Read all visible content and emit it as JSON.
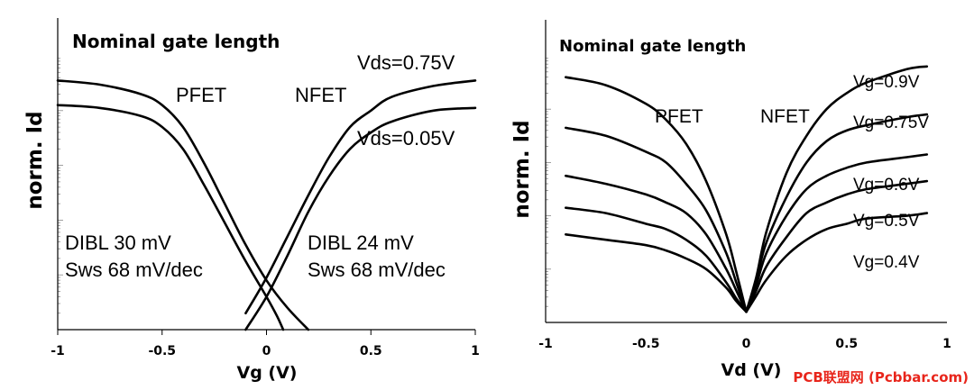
{
  "chart_data": [
    {
      "type": "line",
      "title": "Nominal gate length",
      "xlabel": "Vg (V)",
      "ylabel": "norm. Id",
      "xlim": [
        -1,
        1
      ],
      "ylim": [
        0,
        1
      ],
      "xticks": [
        "-1",
        "-0.5",
        "0",
        "0.5",
        "1"
      ],
      "y_scale": "log (unlabeled)",
      "device_labels": [
        "PFET",
        "NFET"
      ],
      "series": [
        {
          "name": "PFET Vds=0.75V",
          "x": [
            -1.0,
            -0.8,
            -0.6,
            -0.5,
            -0.4,
            -0.3,
            -0.2,
            -0.1,
            0.0,
            0.1,
            0.2
          ],
          "y": [
            0.91,
            0.895,
            0.86,
            0.82,
            0.74,
            0.61,
            0.46,
            0.31,
            0.18,
            0.08,
            0.0
          ]
        },
        {
          "name": "PFET Vds=0.05V",
          "x": [
            -1.0,
            -0.8,
            -0.6,
            -0.5,
            -0.4,
            -0.3,
            -0.2,
            -0.1,
            0.0,
            0.05,
            0.08
          ],
          "y": [
            0.82,
            0.81,
            0.78,
            0.74,
            0.66,
            0.53,
            0.39,
            0.25,
            0.12,
            0.05,
            0.0
          ]
        },
        {
          "name": "NFET Vds=0.75V",
          "x": [
            -0.1,
            0.0,
            0.1,
            0.2,
            0.3,
            0.4,
            0.5,
            0.6,
            0.8,
            1.0
          ],
          "y": [
            0.06,
            0.19,
            0.34,
            0.49,
            0.63,
            0.74,
            0.8,
            0.85,
            0.89,
            0.91
          ]
        },
        {
          "name": "NFET Vds=0.05V",
          "x": [
            -0.1,
            0.0,
            0.1,
            0.2,
            0.3,
            0.4,
            0.5,
            0.6,
            0.8,
            1.0
          ],
          "y": [
            0.0,
            0.12,
            0.27,
            0.43,
            0.56,
            0.66,
            0.72,
            0.76,
            0.8,
            0.81
          ]
        }
      ],
      "annotations": {
        "vds_high": "Vds=0.75V",
        "vds_low": "Vds=0.05V",
        "pfet_dibl": "DIBL 30 mV",
        "pfet_sws": "Sws 68 mV/dec",
        "nfet_dibl": "DIBL 24 mV",
        "nfet_sws": "Sws 68 mV/dec"
      }
    },
    {
      "type": "line",
      "title": "Nominal gate length",
      "xlabel": "Vd (V)",
      "ylabel": "norm. Id",
      "xlim": [
        -1,
        1
      ],
      "ylim": [
        0,
        1
      ],
      "xticks": [
        "-1",
        "-0.5",
        "0",
        "0.5",
        "1"
      ],
      "device_labels": [
        "PFET",
        "NFET"
      ],
      "series": [
        {
          "name": "PFET |Vg|=0.9V",
          "x": [
            -0.9,
            -0.7,
            -0.5,
            -0.4,
            -0.3,
            -0.2,
            -0.1,
            -0.05,
            0.0
          ],
          "y": [
            0.92,
            0.89,
            0.82,
            0.76,
            0.67,
            0.53,
            0.33,
            0.19,
            0.04
          ]
        },
        {
          "name": "PFET |Vg|=0.75V",
          "x": [
            -0.9,
            -0.7,
            -0.5,
            -0.4,
            -0.3,
            -0.2,
            -0.1,
            -0.05,
            0.0
          ],
          "y": [
            0.73,
            0.7,
            0.64,
            0.6,
            0.52,
            0.42,
            0.26,
            0.15,
            0.04
          ]
        },
        {
          "name": "PFET |Vg|=0.6V",
          "x": [
            -0.9,
            -0.7,
            -0.5,
            -0.4,
            -0.3,
            -0.2,
            -0.1,
            -0.05,
            0.0
          ],
          "y": [
            0.55,
            0.52,
            0.48,
            0.45,
            0.41,
            0.33,
            0.2,
            0.12,
            0.04
          ]
        },
        {
          "name": "PFET |Vg|=0.5V",
          "x": [
            -0.9,
            -0.7,
            -0.5,
            -0.4,
            -0.3,
            -0.2,
            -0.1,
            -0.05,
            0.0
          ],
          "y": [
            0.43,
            0.41,
            0.37,
            0.35,
            0.31,
            0.25,
            0.15,
            0.09,
            0.04
          ]
        },
        {
          "name": "PFET |Vg|=0.4V",
          "x": [
            -0.9,
            -0.7,
            -0.5,
            -0.4,
            -0.3,
            -0.2,
            -0.1,
            -0.05,
            0.0
          ],
          "y": [
            0.33,
            0.31,
            0.29,
            0.27,
            0.24,
            0.2,
            0.13,
            0.08,
            0.04
          ]
        },
        {
          "name": "Vg=0.9V",
          "x": [
            0.0,
            0.05,
            0.1,
            0.2,
            0.3,
            0.4,
            0.5,
            0.6,
            0.8,
            0.9
          ],
          "y": [
            0.04,
            0.17,
            0.34,
            0.56,
            0.7,
            0.8,
            0.86,
            0.9,
            0.95,
            0.96
          ]
        },
        {
          "name": "Vg=0.75V",
          "x": [
            0.0,
            0.05,
            0.1,
            0.2,
            0.3,
            0.4,
            0.5,
            0.6,
            0.8,
            0.9
          ],
          "y": [
            0.04,
            0.16,
            0.3,
            0.47,
            0.6,
            0.68,
            0.72,
            0.74,
            0.77,
            0.78
          ]
        },
        {
          "name": "Vg=0.6V",
          "x": [
            0.0,
            0.05,
            0.1,
            0.2,
            0.3,
            0.4,
            0.5,
            0.6,
            0.8,
            0.9
          ],
          "y": [
            0.04,
            0.14,
            0.26,
            0.4,
            0.5,
            0.55,
            0.58,
            0.6,
            0.62,
            0.63
          ]
        },
        {
          "name": "Vg=0.5V",
          "x": [
            0.0,
            0.05,
            0.1,
            0.2,
            0.3,
            0.4,
            0.5,
            0.6,
            0.8,
            0.9
          ],
          "y": [
            0.04,
            0.12,
            0.21,
            0.32,
            0.41,
            0.45,
            0.48,
            0.5,
            0.52,
            0.53
          ]
        },
        {
          "name": "Vg=0.4V",
          "x": [
            0.0,
            0.05,
            0.1,
            0.2,
            0.3,
            0.4,
            0.5,
            0.6,
            0.8,
            0.9
          ],
          "y": [
            0.04,
            0.1,
            0.16,
            0.25,
            0.31,
            0.35,
            0.37,
            0.39,
            0.4,
            0.41
          ]
        }
      ],
      "curve_labels": [
        "Vg=0.9V",
        "Vg=0.75V",
        "Vg=0.6V",
        "Vg=0.5V",
        "Vg=0.4V"
      ]
    }
  ],
  "watermark": "PCB联盟网 (Pcbbar.com)"
}
